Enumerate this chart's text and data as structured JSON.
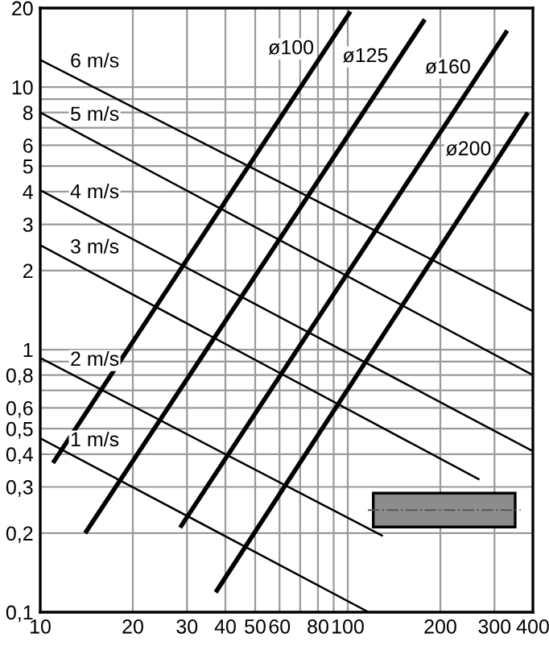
{
  "chart_data": {
    "type": "line",
    "series": [
      {
        "name": "ø100",
        "color": "#000000",
        "x": [
          11.0,
          102
        ],
        "values": [
          0.37,
          19.4
        ]
      },
      {
        "name": "ø125",
        "color": "#000000",
        "x": [
          14.0,
          178
        ],
        "values": [
          0.2,
          18.1
        ]
      },
      {
        "name": "ø160",
        "color": "#000000",
        "x": [
          28.5,
          330
        ],
        "values": [
          0.21,
          16.4
        ]
      },
      {
        "name": "ø200",
        "color": "#000000",
        "x": [
          37.2,
          385
        ],
        "values": [
          0.119,
          8.0
        ]
      },
      {
        "name": "6 m/s",
        "color": "#000000",
        "x": [
          10,
          400
        ],
        "values": [
          12.7,
          1.4
        ]
      },
      {
        "name": "5 m/s",
        "color": "#000000",
        "x": [
          10,
          400
        ],
        "values": [
          8.0,
          0.8
        ]
      },
      {
        "name": "4 m/s",
        "color": "#000000",
        "x": [
          10,
          400
        ],
        "values": [
          4.05,
          0.41
        ]
      },
      {
        "name": "3 m/s",
        "color": "#000000",
        "x": [
          10,
          268
        ],
        "values": [
          2.5,
          0.32
        ]
      },
      {
        "name": "2 m/s",
        "color": "#000000",
        "x": [
          10,
          130
        ],
        "values": [
          0.93,
          0.195
        ]
      },
      {
        "name": "1 m/s",
        "color": "#000000",
        "x": [
          10,
          117
        ],
        "values": [
          0.46,
          0.1
        ]
      }
    ],
    "log": "xy",
    "xlim": [
      10,
      400
    ],
    "ylim": [
      0.1,
      20
    ],
    "xticks": [
      10,
      20,
      30,
      40,
      50,
      60,
      {
        "value": 70,
        "label": null
      },
      80,
      {
        "value": 90,
        "label": null
      },
      100,
      200,
      300,
      400
    ],
    "yticks": [
      {
        "value": 0.1,
        "label": "0,1"
      },
      {
        "value": 0.2,
        "label": "0,2"
      },
      {
        "value": 0.3,
        "label": "0,3"
      },
      {
        "value": 0.4,
        "label": "0,4"
      },
      {
        "value": 0.5,
        "label": "0,5"
      },
      {
        "value": 0.6,
        "label": "0,6"
      },
      {
        "value": 0.7,
        "label": null
      },
      {
        "value": 0.8,
        "label": "0,8"
      },
      {
        "value": 0.9,
        "label": null
      },
      1,
      2,
      3,
      4,
      5,
      6,
      {
        "value": 7,
        "label": null
      },
      8,
      {
        "value": 9,
        "label": null
      },
      10,
      20
    ],
    "grid": true,
    "marker": "none",
    "line_style": "solid"
  }
}
